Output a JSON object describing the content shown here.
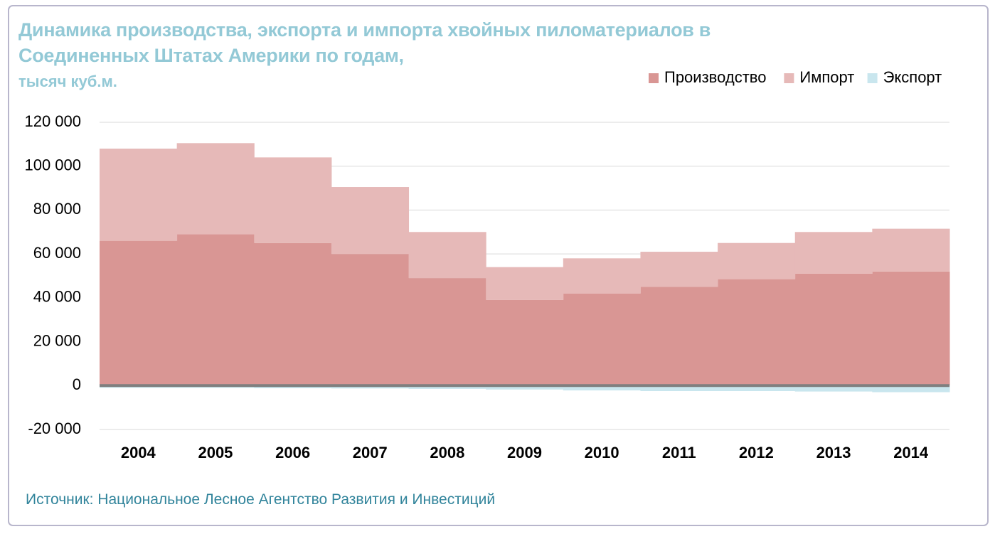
{
  "chart_data": {
    "type": "stepped-stacked-area",
    "title": "Динамика производства, экспорта и импорта хвойных пиломатериалов в Соединенных Штатах Америки по годам,",
    "subtitle": "тысяч куб.м.",
    "source": "Источник: Национальное Лесное Агентство Развития и Инвестиций",
    "categories": [
      "2004",
      "2005",
      "2006",
      "2007",
      "2008",
      "2009",
      "2010",
      "2011",
      "2012",
      "2013",
      "2014"
    ],
    "series": [
      {
        "name": "Производство",
        "color": "#d99694",
        "values": [
          66000,
          69000,
          65000,
          60000,
          49000,
          39000,
          42000,
          45000,
          48500,
          51000,
          52000
        ]
      },
      {
        "name": "Импорт",
        "color": "#e6b9b8",
        "values": [
          42000,
          41500,
          39000,
          30500,
          21000,
          15000,
          16000,
          16000,
          16500,
          19000,
          19500
        ]
      },
      {
        "name": "Экспорт",
        "color": "#c9e6ee",
        "values": [
          -1000,
          -1000,
          -1200,
          -1300,
          -1500,
          -1800,
          -2200,
          -2500,
          -2500,
          -2700,
          -3000
        ]
      }
    ],
    "ylim": [
      -20000,
      120000
    ],
    "yticks": [
      {
        "value": -20000,
        "label": "-20 000"
      },
      0,
      {
        "value": 20000,
        "label": "20 000"
      },
      {
        "value": 40000,
        "label": "40 000"
      },
      {
        "value": 60000,
        "label": "60 000"
      },
      {
        "value": 80000,
        "label": "80 000"
      },
      {
        "value": 100000,
        "label": "100 000"
      },
      {
        "value": 120000,
        "label": "120 000"
      }
    ],
    "grid": true,
    "legend": "top-right"
  }
}
